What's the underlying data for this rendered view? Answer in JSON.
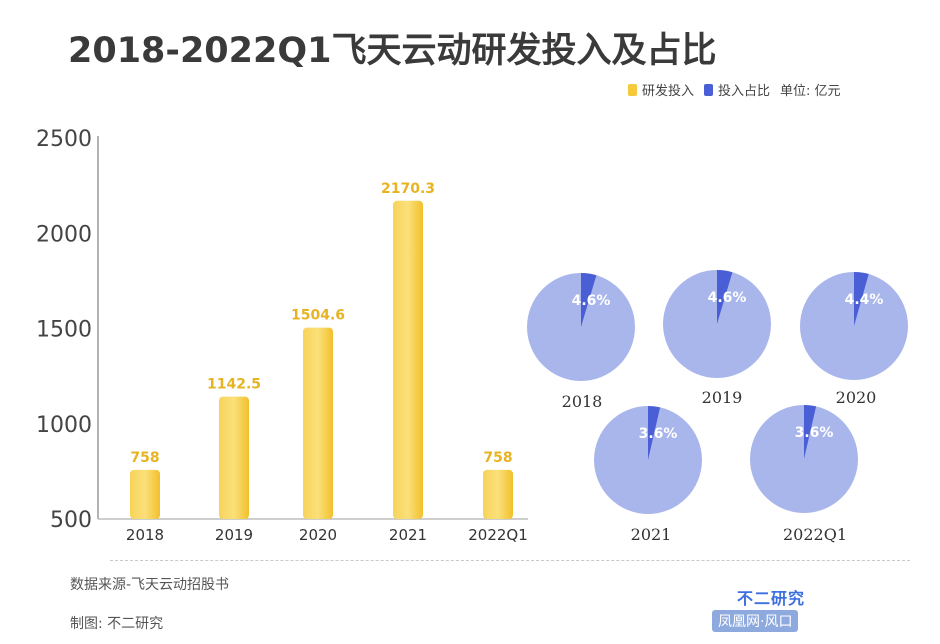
{
  "header": {
    "title": "2018-2022Q1飞天云动研发投入及占比",
    "unit": "单位: 亿元"
  },
  "legend": [
    {
      "label": "研发投入",
      "color": "#f5c93a"
    },
    {
      "label": "投入占比",
      "color": "#4a5fd6"
    }
  ],
  "footer": {
    "source": "数据来源-飞天云动招股书",
    "maker": "制图: 不二研究",
    "brand": "不二研究",
    "credit": "凤凰网·风口"
  },
  "chart_data": [
    {
      "type": "bar",
      "categories": [
        "2018",
        "2019",
        "2020",
        "2021",
        "2022Q1"
      ],
      "values": [
        758,
        1142.5,
        1504.6,
        2170.3,
        758
      ],
      "value_labels": [
        "758",
        "1142.5",
        "1504.6",
        "2170.3",
        "758"
      ],
      "yticks": [
        "500",
        "1000",
        "1500",
        "2000",
        "2500"
      ],
      "ylim": [
        500,
        2500
      ],
      "color": "#f5c93a",
      "label_color": "#e6b423"
    },
    {
      "type": "pie",
      "categories": [
        "2018",
        "2019",
        "2020",
        "2021",
        "2022Q1"
      ],
      "values": [
        4.6,
        4.6,
        4.4,
        3.6,
        3.6
      ],
      "value_labels": [
        "4.6%",
        "4.6%",
        "4.4%",
        "3.6%",
        "3.6%"
      ],
      "slice_color": "#4a5fd6",
      "rest_color": "#a9b6ec"
    }
  ]
}
